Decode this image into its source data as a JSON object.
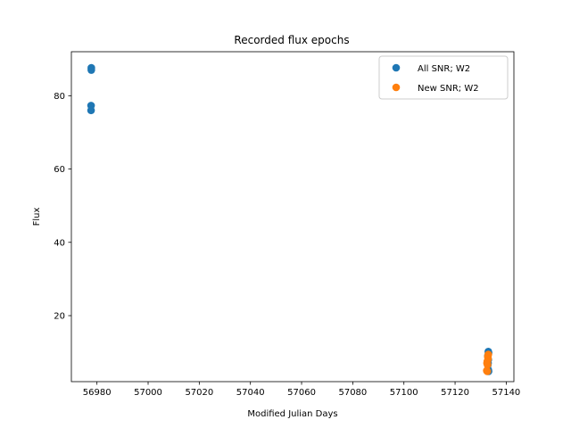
{
  "chart_data": {
    "type": "scatter",
    "title": "Recorded flux epochs",
    "xlabel": "Modified Julian Days",
    "ylabel": "Flux",
    "xlim": [
      56970,
      57143
    ],
    "ylim": [
      2,
      92
    ],
    "xticks": [
      56980,
      57000,
      57020,
      57040,
      57060,
      57080,
      57100,
      57120,
      57140
    ],
    "yticks": [
      20,
      40,
      60,
      80
    ],
    "grid": false,
    "legend_position": "top-right",
    "series": [
      {
        "name": "All SNR; W2",
        "color": "#1f77b4",
        "points": [
          {
            "x": 56977.8,
            "y": 87.6
          },
          {
            "x": 56977.8,
            "y": 87.0
          },
          {
            "x": 56977.7,
            "y": 77.3
          },
          {
            "x": 56977.7,
            "y": 76.0
          },
          {
            "x": 57133.0,
            "y": 10.2
          },
          {
            "x": 57133.1,
            "y": 9.8
          },
          {
            "x": 57132.8,
            "y": 9.0
          },
          {
            "x": 57133.0,
            "y": 8.0
          },
          {
            "x": 57132.9,
            "y": 7.0
          },
          {
            "x": 57132.8,
            "y": 6.5
          },
          {
            "x": 57133.0,
            "y": 5.2
          },
          {
            "x": 57133.1,
            "y": 4.8
          }
        ]
      },
      {
        "name": "New SNR; W2",
        "color": "#ff7f0e",
        "points": [
          {
            "x": 57133.0,
            "y": 9.4
          },
          {
            "x": 57132.8,
            "y": 8.8
          },
          {
            "x": 57132.9,
            "y": 8.2
          },
          {
            "x": 57132.6,
            "y": 7.5
          },
          {
            "x": 57132.5,
            "y": 7.0
          },
          {
            "x": 57132.7,
            "y": 6.6
          },
          {
            "x": 57132.4,
            "y": 5.0
          },
          {
            "x": 57132.6,
            "y": 4.8
          }
        ]
      }
    ]
  }
}
